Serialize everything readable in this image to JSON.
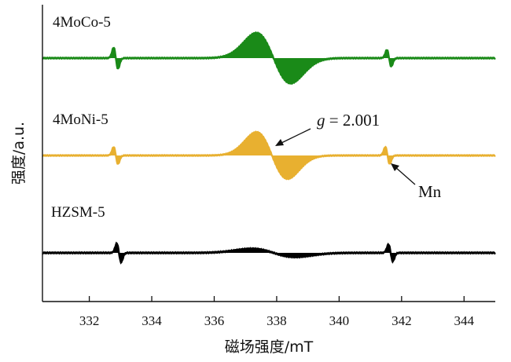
{
  "chart_data": {
    "type": "line",
    "xlabel": "磁场强度/mT",
    "ylabel": "强度/a.u.",
    "xlim": [
      330.5,
      345
    ],
    "xticks": [
      "332",
      "334",
      "336",
      "338",
      "340",
      "342",
      "344"
    ],
    "yticks_shown": false,
    "grid": false,
    "legend": "none",
    "series": [
      {
        "name": "4MoCo-5",
        "color": "#1a8a18",
        "baseline_offset": 2,
        "peaks": [
          {
            "center": 337.9,
            "amplitude": 1.0,
            "width": 0.55
          },
          {
            "center": 332.85,
            "amplitude": 0.42,
            "width": 0.07
          },
          {
            "center": 341.6,
            "amplitude": 0.33,
            "width": 0.07
          }
        ]
      },
      {
        "name": "4MoNi-5",
        "color": "#e8b030",
        "baseline_offset": 1,
        "peaks": [
          {
            "center": 337.85,
            "amplitude": 1.1,
            "width": 0.5
          },
          {
            "center": 332.85,
            "amplitude": 0.4,
            "width": 0.07
          },
          {
            "center": 341.55,
            "amplitude": 0.4,
            "width": 0.07
          }
        ]
      },
      {
        "name": "HZSM-5",
        "color": "#000000",
        "baseline_offset": 0,
        "peaks": [
          {
            "center": 337.9,
            "amplitude": 0.22,
            "width": 0.7
          },
          {
            "center": 332.95,
            "amplitude": 0.5,
            "width": 0.07
          },
          {
            "center": 341.65,
            "amplitude": 0.45,
            "width": 0.07
          }
        ]
      }
    ],
    "annotations": [
      {
        "text": "g = 2.001",
        "g_symbol": "g",
        "g_rest": " = 2.001",
        "points_to": {
          "x": 337.7,
          "series": "4MoNi-5"
        }
      },
      {
        "text": "Mn",
        "points_to": {
          "x": 341.6,
          "series": "4MoNi-5"
        }
      }
    ]
  }
}
